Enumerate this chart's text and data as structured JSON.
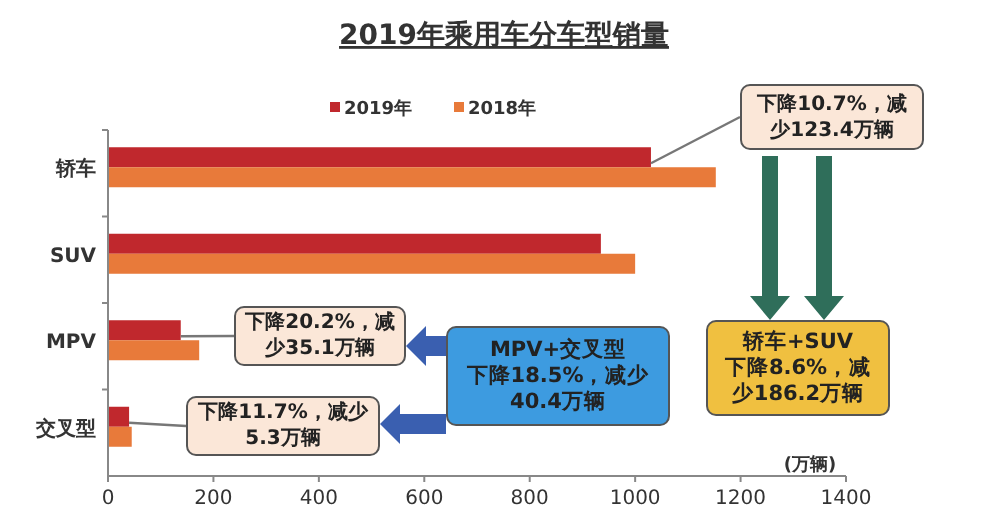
{
  "chart_data": {
    "type": "bar",
    "orientation": "horizontal",
    "title": "2019年乘用车分车型销量",
    "xlabel": "(万辆)",
    "categories": [
      "轿车",
      "SUV",
      "MPV",
      "交叉型"
    ],
    "series": [
      {
        "name": "2019年",
        "color": "#c0282d",
        "values": [
          1030,
          935,
          138,
          40
        ]
      },
      {
        "name": "2018年",
        "color": "#e87a3a",
        "values": [
          1153,
          1000,
          173,
          45
        ]
      }
    ],
    "xlim": [
      0,
      1400
    ],
    "xticks": [
      0,
      200,
      400,
      600,
      800,
      1000,
      1200,
      1400
    ],
    "legend": "top",
    "grid": false,
    "annotations": [
      {
        "text": "下降10.7%，减少123.4万辆",
        "x": 1030,
        "y": "轿车"
      },
      {
        "text": "下降20.2%，减少35.1万辆",
        "x": 138,
        "y": "MPV"
      },
      {
        "text": "下降11.7%，减少5.3万辆",
        "x": 40,
        "y": "交叉型"
      },
      "MPV+交叉型",
      "下降18.5%，减少40.4万辆",
      "轿车+SUV",
      "下降8.6%，减少186.2万辆"
    ]
  }
}
